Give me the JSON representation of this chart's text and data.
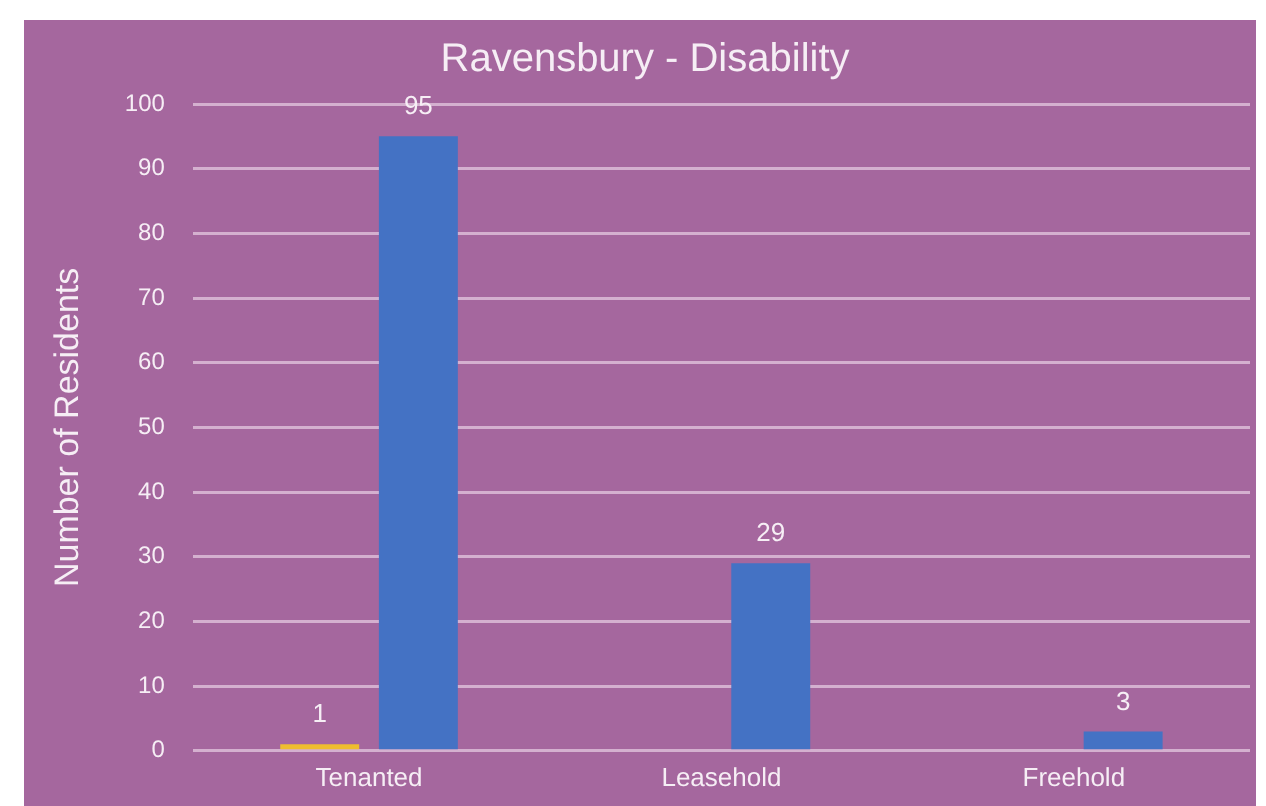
{
  "chart_data": {
    "type": "bar",
    "title": "Ravensbury - Disability",
    "ylabel": "Number of Residents",
    "categories": [
      "Tenanted",
      "Leasehold",
      "Freehold"
    ],
    "series": [
      {
        "color": "#eebd2f",
        "values": [
          1,
          null,
          null
        ]
      },
      {
        "color": "#4472c4",
        "values": [
          95,
          29,
          3
        ]
      }
    ],
    "ylim": [
      0,
      100
    ],
    "yticks": [
      0,
      10,
      20,
      30,
      40,
      50,
      60,
      70,
      80,
      90,
      100
    ],
    "grid": "y",
    "legend": false,
    "data_labels": true
  }
}
